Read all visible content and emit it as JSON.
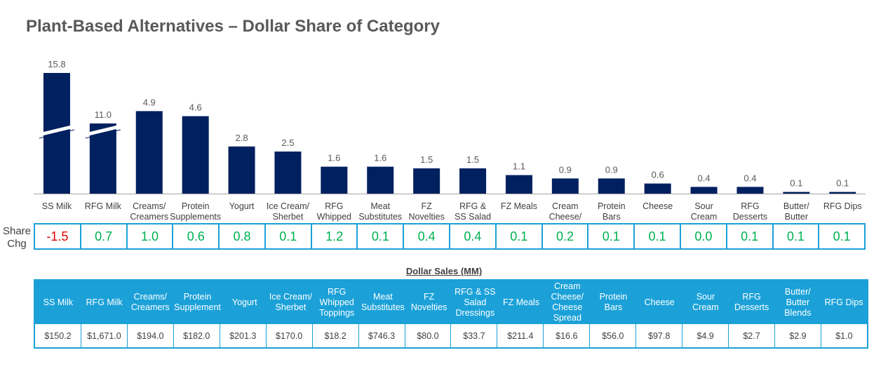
{
  "title": "Plant-Based Alternatives – Dollar Share of Category",
  "colors": {
    "bar": "#002060",
    "positive": "#00b050",
    "negative": "#e00000",
    "accent": "#1ba1d8"
  },
  "chart_data": {
    "type": "bar",
    "categories": [
      "SS Milk",
      "RFG Milk",
      "Creams/ Creamers",
      "Protein Supplements",
      "Yogurt",
      "Ice Cream/ Sherbet",
      "RFG Whipped",
      "Meat Substitutes",
      "FZ Novelties",
      "RFG & SS Salad",
      "FZ Meals",
      "Cream Cheese/",
      "Protein Bars",
      "Cheese",
      "Sour Cream",
      "RFG Desserts",
      "Butter/ Butter",
      "RFG Dips"
    ],
    "values": [
      15.8,
      11.0,
      4.9,
      4.6,
      2.8,
      2.5,
      1.6,
      1.6,
      1.5,
      1.5,
      1.1,
      0.9,
      0.9,
      0.6,
      0.4,
      0.4,
      0.1,
      0.1
    ],
    "value_labels": [
      "15.8",
      "11.0",
      "4.9",
      "4.6",
      "2.8",
      "2.5",
      "1.6",
      "1.6",
      "1.5",
      "1.5",
      "1.1",
      "0.9",
      "0.9",
      "0.6",
      "0.4",
      "0.4",
      "0.1",
      "0.1"
    ],
    "axis_break_on": [
      "SS Milk",
      "RFG Milk"
    ],
    "title": "Plant-Based Alternatives – Dollar Share of Category"
  },
  "share_chg": {
    "label": "Share Chg",
    "values": [
      "-1.5",
      "0.7",
      "1.0",
      "0.6",
      "0.8",
      "0.1",
      "1.2",
      "0.1",
      "0.4",
      "0.4",
      "0.1",
      "0.2",
      "0.1",
      "0.1",
      "0.0",
      "0.1",
      "0.1",
      "0.1"
    ],
    "numeric": [
      -1.5,
      0.7,
      1.0,
      0.6,
      0.8,
      0.1,
      1.2,
      0.1,
      0.4,
      0.4,
      0.1,
      0.2,
      0.1,
      0.1,
      0.0,
      0.1,
      0.1,
      0.1
    ]
  },
  "dollar_sales": {
    "title": "Dollar Sales (MM)",
    "headers": [
      "SS Milk",
      "RFG Milk",
      "Creams/ Creamers",
      "Protein Supplement",
      "Yogurt",
      "Ice Cream/ Sherbet",
      "RFG Whipped Toppings",
      "Meat Substitutes",
      "FZ Novelties",
      "RFG & SS Salad Dressings",
      "FZ Meals",
      "Cream Cheese/ Cheese Spread",
      "Protein Bars",
      "Cheese",
      "Sour Cream",
      "RFG Desserts",
      "Butter/ Butter Blends",
      "RFG Dips"
    ],
    "values": [
      "$150.2",
      "$1,671.0",
      "$194.0",
      "$182.0",
      "$201.3",
      "$170.0",
      "$18.2",
      "$746.3",
      "$80.0",
      "$33.7",
      "$211.4",
      "$16.6",
      "$56.0",
      "$97.8",
      "$4.9",
      "$2.7",
      "$2.9",
      "$1.0"
    ]
  }
}
